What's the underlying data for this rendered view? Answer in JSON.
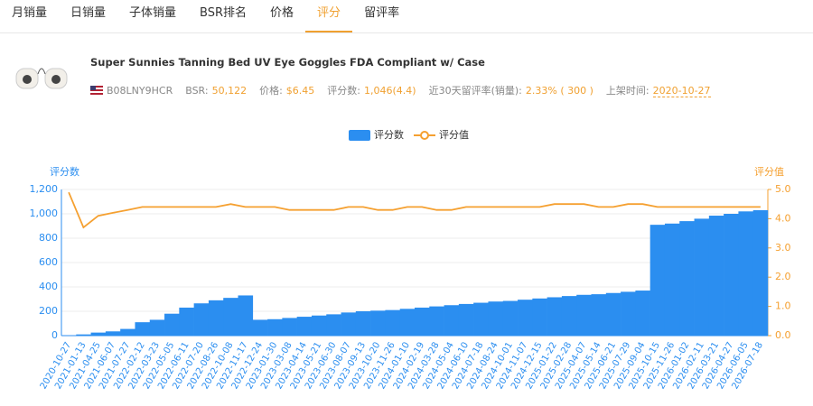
{
  "tabs": [
    "月销量",
    "日销量",
    "子体销量",
    "BSR排名",
    "价格",
    "评分",
    "留评率"
  ],
  "active_tab": 5,
  "product": {
    "title": "Super Sunnies Tanning Bed UV Eye Goggles FDA Compliant w/ Case",
    "asin": "B08LNY9HCR",
    "info": [
      {
        "label": "BSR:",
        "value": "50,122"
      },
      {
        "label": "价格:",
        "value": "$6.45"
      },
      {
        "label": "评分数:",
        "value": "1,046(4.4)"
      },
      {
        "label": "近30天留评率(销量):",
        "value": "2.33% ( 300 )"
      },
      {
        "label": "上架时间:",
        "value": "2020-10-27"
      }
    ]
  },
  "chart_data": {
    "type": "bar",
    "y_label": "评分数",
    "y2_label": "评分值",
    "categories": [
      "2020-10-27",
      "2021-01-13",
      "2021-04-25",
      "2021-06-07",
      "2021-07-27",
      "2022-02-12",
      "2022-03-23",
      "2022-05-05",
      "2022-06-11",
      "2022-07-20",
      "2022-08-26",
      "2022-10-08",
      "2022-11-17",
      "2022-12-24",
      "2023-01-30",
      "2023-03-08",
      "2023-04-14",
      "2023-05-21",
      "2023-06-30",
      "2023-08-07",
      "2023-09-13",
      "2023-10-20",
      "2023-11-26",
      "2024-01-10",
      "2024-02-19",
      "2024-03-28",
      "2024-05-04",
      "2024-06-10",
      "2024-07-18",
      "2024-08-24",
      "2024-10-01",
      "2024-11-07",
      "2024-12-15",
      "2025-01-22",
      "2025-02-28",
      "2025-04-07",
      "2025-05-14",
      "2025-06-21",
      "2025-07-29",
      "2025-09-04",
      "2025-10-15",
      "2025-11-26",
      "2026-01-02",
      "2026-02-11",
      "2026-03-21",
      "2026-04-27",
      "2026-06-05",
      "2026-07-18"
    ],
    "series": [
      {
        "name": "评分数",
        "type": "bar",
        "color": "#2b8ef0",
        "values": [
          0,
          10,
          25,
          35,
          55,
          110,
          130,
          180,
          230,
          265,
          290,
          310,
          330,
          130,
          135,
          145,
          155,
          165,
          175,
          190,
          200,
          205,
          210,
          220,
          230,
          240,
          250,
          260,
          270,
          280,
          285,
          295,
          305,
          315,
          325,
          335,
          340,
          350,
          360,
          370,
          910,
          920,
          940,
          960,
          985,
          1000,
          1020,
          1030
        ]
      },
      {
        "name": "评分值",
        "type": "line",
        "axis": "y2",
        "color": "#f5a030",
        "values": [
          4.9,
          3.7,
          4.1,
          4.2,
          4.3,
          4.4,
          4.4,
          4.4,
          4.4,
          4.4,
          4.4,
          4.5,
          4.4,
          4.4,
          4.4,
          4.3,
          4.3,
          4.3,
          4.3,
          4.4,
          4.4,
          4.3,
          4.3,
          4.4,
          4.4,
          4.3,
          4.3,
          4.4,
          4.4,
          4.4,
          4.4,
          4.4,
          4.4,
          4.5,
          4.5,
          4.5,
          4.4,
          4.4,
          4.5,
          4.5,
          4.4,
          4.4,
          4.4,
          4.4,
          4.4,
          4.4,
          4.4,
          4.4
        ]
      }
    ],
    "ylim": [
      0,
      1200
    ],
    "yticks": [
      0,
      200,
      400,
      600,
      800,
      {
        "value": 1000,
        "label": "1,000"
      },
      {
        "value": 1200,
        "label": "1,200"
      }
    ],
    "y2lim": [
      0,
      5
    ],
    "y2ticks": [
      {
        "value": 0,
        "label": "0.0"
      },
      {
        "value": 1,
        "label": "1.0"
      },
      {
        "value": 2,
        "label": "2.0"
      },
      {
        "value": 3,
        "label": "3.0"
      },
      {
        "value": 4,
        "label": "4.0"
      },
      {
        "value": 5,
        "label": "5.0"
      }
    ],
    "grid": true
  }
}
